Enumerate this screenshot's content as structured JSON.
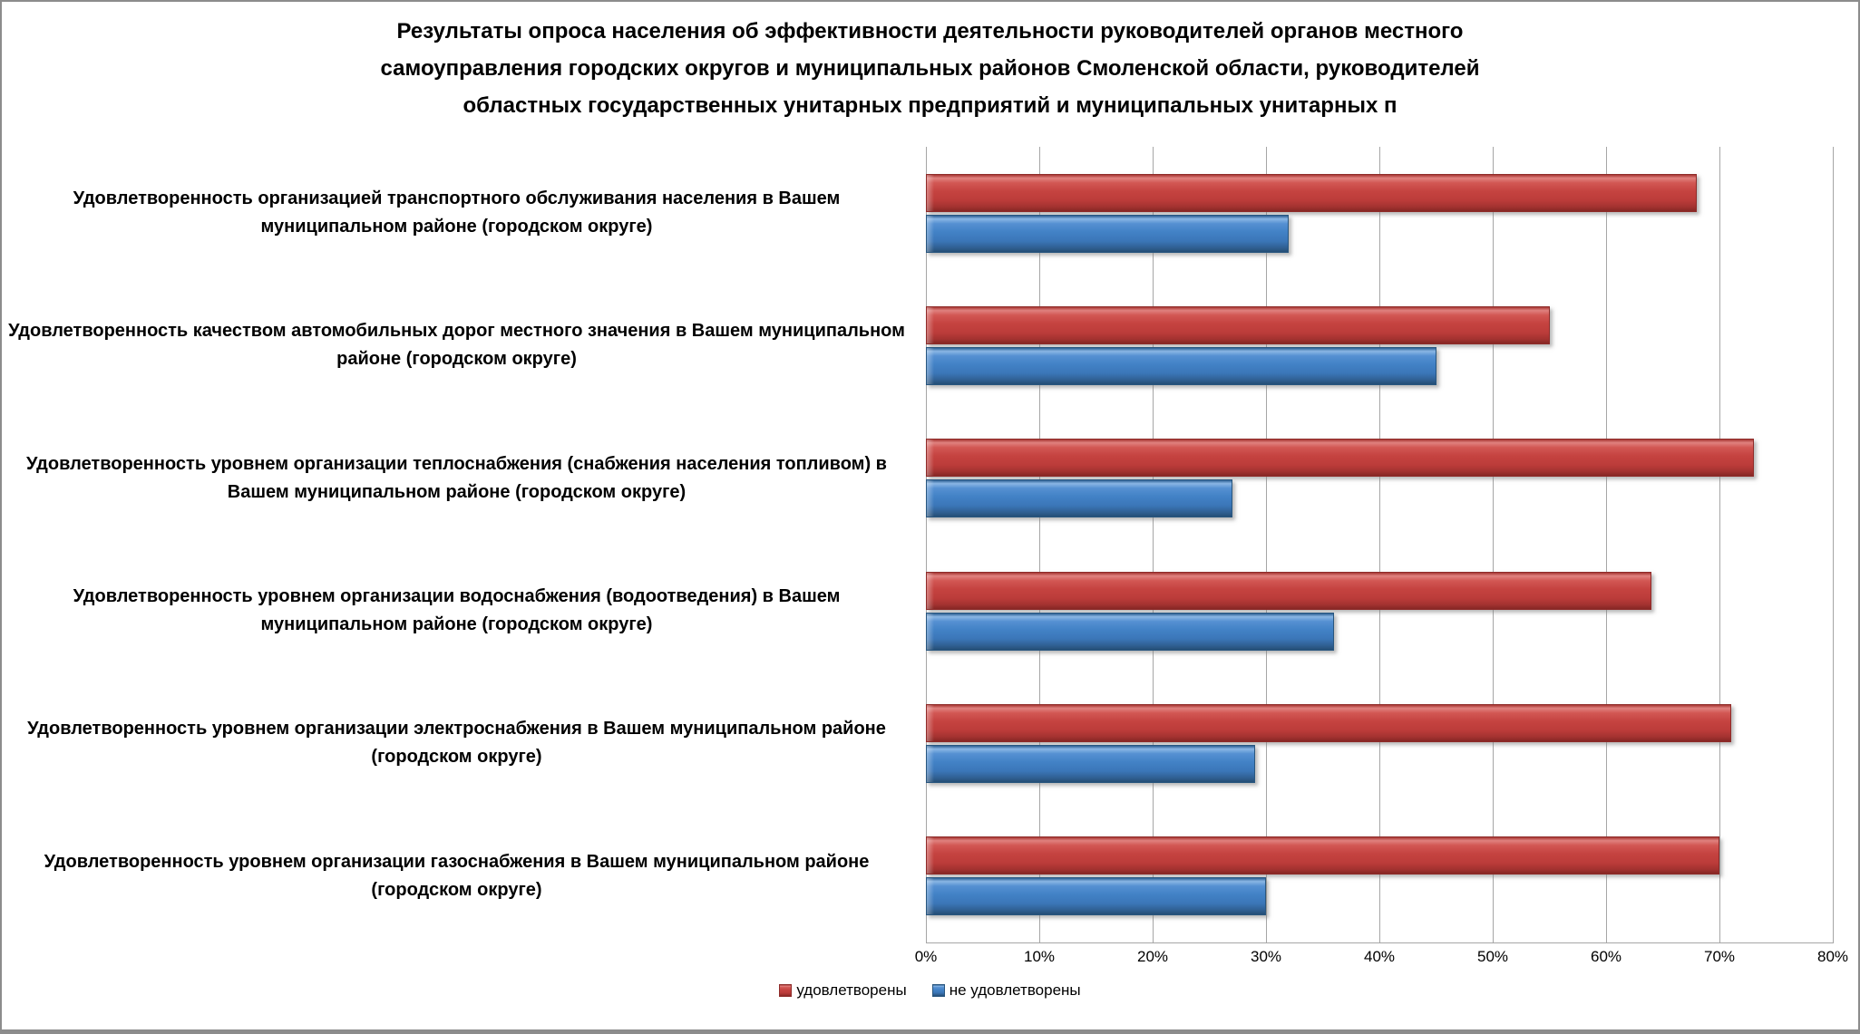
{
  "chart_data": {
    "type": "bar",
    "orientation": "horizontal",
    "title": "Результаты опроса населения об эффективности деятельности руководителей органов местного самоуправления городских округов и муниципальных районов Смоленской области, руководителей областных государственных унитарных предприятий и муниципальных унитарных п",
    "title_lines": [
      "Результаты опроса населения об эффективности деятельности руководителей органов местного",
      "самоуправления городских округов и муниципальных районов Смоленской области, руководителей",
      "областных государственных унитарных предприятий и муниципальных унитарных п"
    ],
    "categories": [
      "Удовлетворенность организацией транспортного обслуживания населения в Вашем муниципальном районе (городском округе)",
      "Удовлетворенность качеством автомобильных дорог местного значения в Вашем муниципальном районе (городском округе)",
      "Удовлетворенность уровнем организации теплоснабжения (снабжения населения топливом) в Вашем муниципальном районе (городском округе)",
      "Удовлетворенность уровнем организации водоснабжения (водоотведения) в Вашем муниципальном районе (городском округе)",
      "Удовлетворенность уровнем организации электроснабжения в Вашем муниципальном районе (городском округе)",
      "Удовлетворенность уровнем организации газоснабжения в Вашем муниципальном районе (городском округе)"
    ],
    "series": [
      {
        "name": "удовлетворены",
        "color": "#C0413E",
        "values": [
          68,
          55,
          73,
          64,
          71,
          70
        ]
      },
      {
        "name": "не удовлетворены",
        "color": "#3E7EC1",
        "values": [
          32,
          45,
          27,
          36,
          29,
          30
        ]
      }
    ],
    "value_unit": "%",
    "xlim": [
      0,
      80
    ],
    "x_ticks": [
      "0%",
      "10%",
      "20%",
      "30%",
      "40%",
      "50%",
      "60%",
      "70%",
      "80%"
    ],
    "grid": true,
    "legend_position": "bottom",
    "colors": {
      "gridline": "#a6a6a6",
      "frame_border": "#8c8c8c",
      "text": "#000000"
    }
  }
}
